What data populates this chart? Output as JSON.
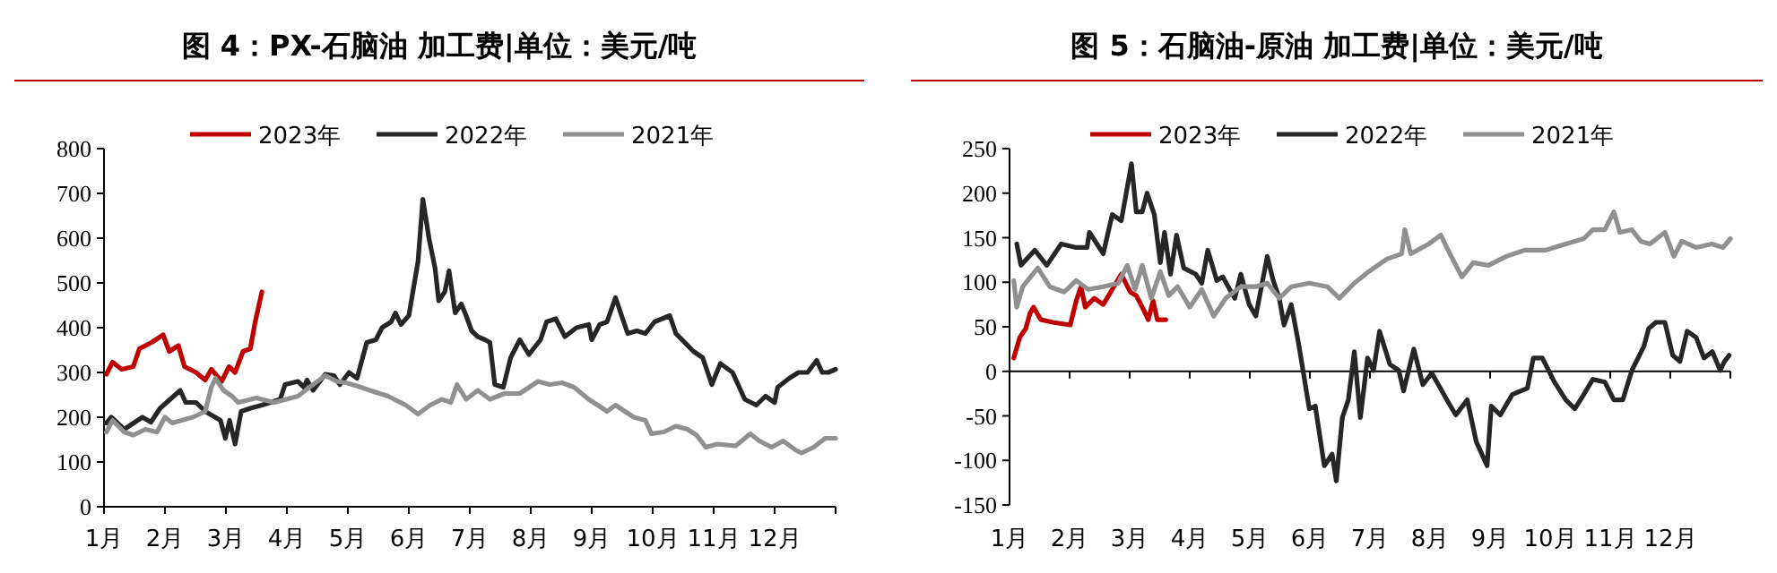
{
  "chart_data": [
    {
      "type": "line",
      "title": "图 4：PX-石脑油 加工费|单位：美元/吨",
      "legend": "top",
      "xlim": [
        1,
        13
      ],
      "xticks": [
        {
          "value": 1,
          "label": "1月"
        },
        {
          "value": 2,
          "label": "2月"
        },
        {
          "value": 3,
          "label": "3月"
        },
        {
          "value": 4,
          "label": "4月"
        },
        {
          "value": 5,
          "label": "5月"
        },
        {
          "value": 6,
          "label": "6月"
        },
        {
          "value": 7,
          "label": "7月"
        },
        {
          "value": 8,
          "label": "8月"
        },
        {
          "value": 9,
          "label": "9月"
        },
        {
          "value": 10,
          "label": "10月"
        },
        {
          "value": 11,
          "label": "11月"
        },
        {
          "value": 12,
          "label": "12月"
        },
        {
          "value": 13,
          "label": null
        }
      ],
      "ylim": [
        0,
        800
      ],
      "yticks": [
        0,
        100,
        200,
        300,
        400,
        500,
        600,
        700,
        800
      ],
      "series": [
        {
          "name": "2023年",
          "color": "#c00000",
          "x": [
            1.04,
            1.14,
            1.29,
            1.48,
            1.58,
            1.78,
            1.97,
            2.07,
            2.22,
            2.32,
            2.51,
            2.66,
            2.76,
            2.93,
            3.05,
            3.15,
            3.28,
            3.4,
            3.48,
            3.59
          ],
          "values": [
            296,
            323,
            307,
            313,
            353,
            367,
            384,
            347,
            360,
            313,
            300,
            283,
            307,
            280,
            313,
            300,
            347,
            353,
            413,
            480
          ]
        },
        {
          "name": "2022年",
          "color": "#262626",
          "x": [
            1.04,
            1.12,
            1.33,
            1.63,
            1.77,
            1.92,
            2.25,
            2.34,
            2.51,
            2.66,
            2.91,
            2.99,
            3.06,
            3.15,
            3.25,
            3.4,
            3.59,
            3.89,
            3.97,
            4.18,
            4.28,
            4.33,
            4.43,
            4.63,
            4.77,
            4.87,
            5.02,
            5.15,
            5.31,
            5.46,
            5.56,
            5.71,
            5.78,
            5.87,
            6.0,
            6.15,
            6.23,
            6.33,
            6.43,
            6.49,
            6.59,
            6.66,
            6.76,
            6.86,
            6.94,
            7.03,
            7.13,
            7.25,
            7.33,
            7.41,
            7.55,
            7.67,
            7.82,
            7.97,
            8.16,
            8.26,
            8.41,
            8.56,
            8.75,
            8.95,
            9.0,
            9.13,
            9.25,
            9.39,
            9.59,
            9.74,
            9.88,
            10.03,
            10.28,
            10.38,
            10.67,
            10.82,
            10.97,
            11.11,
            11.31,
            11.51,
            11.7,
            11.85,
            12.0,
            12.05,
            12.24,
            12.39,
            12.54,
            12.69,
            12.78,
            12.88,
            13.0
          ],
          "values": [
            187,
            200,
            173,
            200,
            189,
            220,
            260,
            233,
            233,
            213,
            193,
            153,
            193,
            140,
            213,
            220,
            227,
            240,
            273,
            280,
            267,
            283,
            260,
            296,
            293,
            273,
            300,
            287,
            367,
            373,
            400,
            413,
            433,
            407,
            427,
            547,
            687,
            600,
            533,
            460,
            480,
            527,
            433,
            453,
            427,
            393,
            380,
            373,
            367,
            273,
            267,
            333,
            373,
            340,
            373,
            413,
            420,
            380,
            400,
            407,
            373,
            407,
            413,
            467,
            387,
            393,
            387,
            413,
            427,
            387,
            347,
            333,
            273,
            320,
            300,
            240,
            227,
            247,
            233,
            267,
            287,
            300,
            300,
            327,
            300,
            300,
            307
          ]
        },
        {
          "name": "2021年",
          "color": "#909090",
          "x": [
            1.04,
            1.14,
            1.33,
            1.48,
            1.68,
            1.87,
            2.0,
            2.12,
            2.27,
            2.46,
            2.66,
            2.76,
            2.83,
            2.96,
            3.1,
            3.2,
            3.5,
            3.79,
            3.99,
            4.18,
            4.43,
            4.63,
            4.82,
            4.97,
            5.17,
            5.36,
            5.66,
            5.95,
            6.15,
            6.35,
            6.54,
            6.69,
            6.79,
            6.94,
            7.13,
            7.33,
            7.57,
            7.82,
            8.12,
            8.31,
            8.51,
            8.71,
            8.95,
            9.1,
            9.25,
            9.39,
            9.69,
            9.88,
            9.98,
            10.18,
            10.38,
            10.57,
            10.72,
            10.87,
            11.06,
            11.36,
            11.6,
            11.75,
            11.95,
            12.14,
            12.34,
            12.44,
            12.64,
            12.83,
            13.0
          ],
          "values": [
            167,
            193,
            167,
            160,
            173,
            167,
            200,
            187,
            193,
            200,
            213,
            267,
            287,
            260,
            247,
            233,
            243,
            233,
            240,
            247,
            273,
            293,
            280,
            277,
            269,
            260,
            247,
            227,
            207,
            227,
            240,
            233,
            273,
            240,
            260,
            240,
            253,
            253,
            280,
            273,
            277,
            267,
            240,
            227,
            213,
            227,
            200,
            193,
            163,
            167,
            180,
            173,
            160,
            133,
            140,
            136,
            163,
            147,
            133,
            147,
            127,
            120,
            133,
            153,
            153
          ]
        }
      ]
    },
    {
      "type": "line",
      "title": "图 5：石脑油-原油 加工费|单位：美元/吨",
      "legend": "top",
      "xlim": [
        1,
        13
      ],
      "xticks": [
        {
          "value": 1,
          "label": "1月"
        },
        {
          "value": 2,
          "label": "2月"
        },
        {
          "value": 3,
          "label": "3月"
        },
        {
          "value": 4,
          "label": "4月"
        },
        {
          "value": 5,
          "label": "5月"
        },
        {
          "value": 6,
          "label": "6月"
        },
        {
          "value": 7,
          "label": "7月"
        },
        {
          "value": 8,
          "label": "8月"
        },
        {
          "value": 9,
          "label": "9月"
        },
        {
          "value": 10,
          "label": "10月"
        },
        {
          "value": 11,
          "label": "11月"
        },
        {
          "value": 12,
          "label": "12月"
        },
        {
          "value": 13,
          "label": null
        }
      ],
      "ylim": [
        -150,
        250
      ],
      "yticks": [
        -150,
        -100,
        -50,
        0,
        50,
        100,
        150,
        200,
        250
      ],
      "series": [
        {
          "name": "2023年",
          "color": "#c00000",
          "x": [
            1.07,
            1.17,
            1.27,
            1.34,
            1.4,
            1.52,
            1.72,
            2.01,
            2.11,
            2.19,
            2.26,
            2.41,
            2.56,
            2.71,
            2.86,
            3.01,
            3.11,
            3.21,
            3.31,
            3.39,
            3.46,
            3.6
          ],
          "values": [
            15,
            38,
            48,
            65,
            72,
            58,
            55,
            52,
            79,
            95,
            72,
            82,
            75,
            92,
            109,
            89,
            85,
            72,
            58,
            79,
            58,
            58
          ]
        },
        {
          "name": "2022年",
          "color": "#262626",
          "x": [
            1.12,
            1.19,
            1.42,
            1.62,
            1.86,
            2.11,
            2.29,
            2.33,
            2.56,
            2.71,
            2.86,
            3.03,
            3.11,
            3.21,
            3.29,
            3.41,
            3.51,
            3.58,
            3.68,
            3.78,
            3.9,
            4.1,
            4.2,
            4.3,
            4.45,
            4.55,
            4.75,
            4.85,
            4.99,
            5.1,
            5.29,
            5.39,
            5.49,
            5.57,
            5.69,
            5.81,
            5.99,
            6.09,
            6.24,
            6.37,
            6.44,
            6.54,
            6.64,
            6.74,
            6.84,
            6.96,
            7.06,
            7.16,
            7.33,
            7.48,
            7.56,
            7.73,
            7.88,
            8.03,
            8.28,
            8.43,
            8.62,
            8.77,
            8.95,
            9.02,
            9.17,
            9.37,
            9.62,
            9.72,
            9.87,
            10.07,
            10.26,
            10.41,
            10.56,
            10.71,
            10.91,
            11.06,
            11.21,
            11.36,
            11.56,
            11.64,
            11.76,
            11.91,
            12.04,
            12.16,
            12.28,
            12.43,
            12.56,
            12.7,
            12.83,
            12.9,
            12.98
          ],
          "values": [
            143,
            119,
            136,
            119,
            143,
            139,
            139,
            156,
            132,
            176,
            169,
            233,
            179,
            179,
            200,
            176,
            122,
            156,
            109,
            153,
            116,
            109,
            99,
            136,
            102,
            106,
            82,
            109,
            75,
            62,
            129,
            102,
            82,
            52,
            75,
            32,
            -42,
            -39,
            -106,
            -93,
            -123,
            -52,
            -32,
            22,
            -52,
            15,
            1,
            45,
            8,
            1,
            -22,
            25,
            -15,
            -2,
            -32,
            -49,
            -32,
            -79,
            -106,
            -39,
            -49,
            -26,
            -19,
            15,
            15,
            -12,
            -32,
            -42,
            -26,
            -9,
            -12,
            -32,
            -32,
            1,
            28,
            48,
            55,
            55,
            18,
            11,
            45,
            38,
            15,
            22,
            1,
            11,
            18
          ]
        },
        {
          "name": "2021年",
          "color": "#909090",
          "x": [
            1.07,
            1.12,
            1.22,
            1.47,
            1.67,
            1.91,
            2.11,
            2.31,
            2.56,
            2.81,
            2.96,
            3.09,
            3.21,
            3.36,
            3.51,
            3.65,
            3.8,
            4.0,
            4.2,
            4.4,
            4.6,
            4.85,
            5.1,
            5.29,
            5.49,
            5.69,
            5.99,
            6.29,
            6.49,
            6.74,
            6.98,
            7.28,
            7.53,
            7.58,
            7.68,
            7.98,
            8.18,
            8.33,
            8.53,
            8.72,
            8.97,
            9.27,
            9.57,
            9.92,
            10.26,
            10.56,
            10.71,
            10.91,
            11.06,
            11.16,
            11.36,
            11.51,
            11.66,
            11.91,
            12.06,
            12.19,
            12.43,
            12.69,
            12.88,
            13.0
          ],
          "values": [
            102,
            72,
            95,
            116,
            95,
            89,
            102,
            92,
            95,
            99,
            119,
            92,
            119,
            82,
            112,
            85,
            95,
            72,
            92,
            62,
            82,
            95,
            95,
            99,
            82,
            95,
            99,
            95,
            82,
            99,
            112,
            126,
            132,
            159,
            132,
            143,
            153,
            132,
            106,
            122,
            119,
            129,
            136,
            136,
            143,
            149,
            159,
            159,
            179,
            156,
            159,
            146,
            143,
            156,
            129,
            146,
            139,
            143,
            139,
            149
          ]
        }
      ]
    }
  ]
}
